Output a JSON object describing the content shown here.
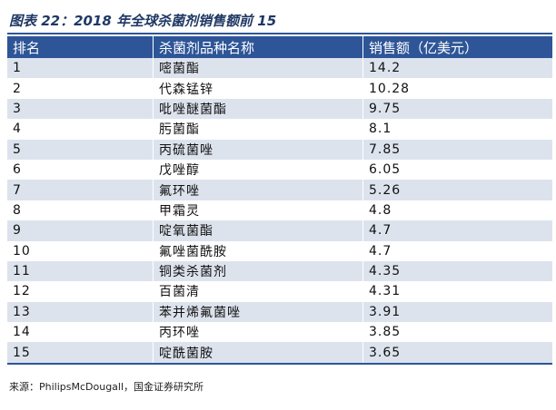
{
  "title": "图表 22：2018 年全球杀菌剂销售额前 15",
  "table": {
    "header": [
      "排名",
      "杀菌剂品种名称",
      "销售额（亿美元）"
    ],
    "rows": [
      [
        "1",
        "嘧菌酯",
        "14.2"
      ],
      [
        "2",
        "代森锰锌",
        "10.28"
      ],
      [
        "3",
        "吡唑醚菌酯",
        "9.75"
      ],
      [
        "4",
        "肟菌酯",
        "8.1"
      ],
      [
        "5",
        "丙硫菌唑",
        "7.85"
      ],
      [
        "6",
        "戊唑醇",
        "6.05"
      ],
      [
        "7",
        "氟环唑",
        "5.26"
      ],
      [
        "8",
        "甲霜灵",
        "4.8"
      ],
      [
        "9",
        "啶氧菌酯",
        "4.7"
      ],
      [
        "10",
        "氟唑菌酰胺",
        "4.7"
      ],
      [
        "11",
        "铜类杀菌剂",
        "4.35"
      ],
      [
        "12",
        "百菌清",
        "4.31"
      ],
      [
        "13",
        "苯并烯氟菌唑",
        "3.91"
      ],
      [
        "14",
        "丙环唑",
        "3.85"
      ],
      [
        "15",
        "啶酰菌胺",
        "3.65"
      ]
    ]
  },
  "source": "来源：PhilipsMcDougall，国金证券研究所"
}
